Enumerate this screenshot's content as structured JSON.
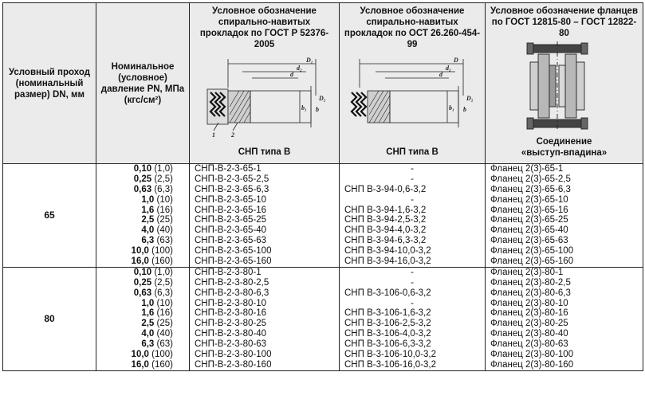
{
  "headers": {
    "dn": "Условный проход (номинальный размер) DN, мм",
    "pn": "Номинальное (условное) давление PN, МПа (кгс/см²)",
    "gost_title": "Условное обозначение спирально-навитых прокладок по ГОСТ Р 52376-2005",
    "gost_caption": "СНП типа В",
    "ost_title": "Условное обозначение спирально-навитых прокладок по ОСТ 26.260-454-99",
    "ost_caption": "СНП типа В",
    "flange_title": "Условное обозначение фланцев по ГОСТ 12815-80 – ГОСТ 12822-80",
    "flange_caption_1": "Соединение",
    "flange_caption_2": "«выступ-впадина»"
  },
  "figure_labels": {
    "d1": "D₁",
    "d2": "d₂",
    "d": "d",
    "D2": "D₂",
    "D": "D",
    "b1": "b₁",
    "b": "b",
    "n1": "1",
    "n2": "2"
  },
  "groups": [
    {
      "dn": "65",
      "rows": [
        {
          "pn": "0,10",
          "kgs": "(1,0)",
          "gost": "СНП-В-2-3-65-1",
          "ost": "-",
          "flange": "Фланец 2(3)-65-1"
        },
        {
          "pn": "0,25",
          "kgs": "(2,5)",
          "gost": "СНП-В-2-3-65-2,5",
          "ost": "-",
          "flange": "Фланец 2(3)-65-2,5"
        },
        {
          "pn": "0,63",
          "kgs": "(6,3)",
          "gost": "СНП-В-2-3-65-6,3",
          "ost": "СНП В-3-94-0,6-3,2",
          "flange": "Фланец 2(3)-65-6,3"
        },
        {
          "pn": "1,0",
          "kgs": "(10)",
          "gost": "СНП-В-2-3-65-10",
          "ost": "-",
          "flange": "Фланец 2(3)-65-10"
        },
        {
          "pn": "1,6",
          "kgs": "(16)",
          "gost": "СНП-В-2-3-65-16",
          "ost": "СНП В-3-94-1,6-3,2",
          "flange": "Фланец 2(3)-65-16"
        },
        {
          "pn": "2,5",
          "kgs": "(25)",
          "gost": "СНП-В-2-3-65-25",
          "ost": "СНП В-3-94-2,5-3,2",
          "flange": "Фланец 2(3)-65-25"
        },
        {
          "pn": "4,0",
          "kgs": "(40)",
          "gost": "СНП-В-2-3-65-40",
          "ost": "СНП В-3-94-4,0-3,2",
          "flange": "Фланец 2(3)-65-40"
        },
        {
          "pn": "6,3",
          "kgs": "(63)",
          "gost": "СНП-В-2-3-65-63",
          "ost": "СНП В-3-94-6,3-3,2",
          "flange": "Фланец 2(3)-65-63"
        },
        {
          "pn": "10,0",
          "kgs": "(100)",
          "gost": "СНП-В-2-3-65-100",
          "ost": "СНП В-3-94-10,0-3,2",
          "flange": "Фланец 2(3)-65-100"
        },
        {
          "pn": "16,0",
          "kgs": "(160)",
          "gost": "СНП-В-2-3-65-160",
          "ost": "СНП В-3-94-16,0-3,2",
          "flange": "Фланец 2(3)-65-160"
        }
      ]
    },
    {
      "dn": "80",
      "rows": [
        {
          "pn": "0,10",
          "kgs": "(1,0)",
          "gost": "СНП-В-2-3-80-1",
          "ost": "-",
          "flange": "Фланец 2(3)-80-1"
        },
        {
          "pn": "0,25",
          "kgs": "(2,5)",
          "gost": "СНП-В-2-3-80-2,5",
          "ost": "-",
          "flange": "Фланец 2(3)-80-2,5"
        },
        {
          "pn": "0,63",
          "kgs": "(6,3)",
          "gost": "СНП-В-2-3-80-6,3",
          "ost": "СНП В-3-106-0,6-3,2",
          "flange": "Фланец 2(3)-80-6,3"
        },
        {
          "pn": "1,0",
          "kgs": "(10)",
          "gost": "СНП-В-2-3-80-10",
          "ost": "-",
          "flange": "Фланец 2(3)-80-10"
        },
        {
          "pn": "1,6",
          "kgs": "(16)",
          "gost": "СНП-В-2-3-80-16",
          "ost": "СНП В-3-106-1,6-3,2",
          "flange": "Фланец 2(3)-80-16"
        },
        {
          "pn": "2,5",
          "kgs": "(25)",
          "gost": "СНП-В-2-3-80-25",
          "ost": "СНП В-3-106-2,5-3,2",
          "flange": "Фланец 2(3)-80-25"
        },
        {
          "pn": "4,0",
          "kgs": "(40)",
          "gost": "СНП-В-2-3-80-40",
          "ost": "СНП В-3-106-4,0-3,2",
          "flange": "Фланец 2(3)-80-40"
        },
        {
          "pn": "6,3",
          "kgs": "(63)",
          "gost": "СНП-В-2-3-80-63",
          "ost": "СНП В-3-106-6,3-3,2",
          "flange": "Фланец 2(3)-80-63"
        },
        {
          "pn": "10,0",
          "kgs": "(100)",
          "gost": "СНП-В-2-3-80-100",
          "ost": "СНП В-3-106-10,0-3,2",
          "flange": "Фланец 2(3)-80-100"
        },
        {
          "pn": "16,0",
          "kgs": "(160)",
          "gost": "СНП-В-2-3-80-160",
          "ost": "СНП В-3-106-16,0-3,2",
          "flange": "Фланец 2(3)-80-160"
        }
      ]
    }
  ]
}
